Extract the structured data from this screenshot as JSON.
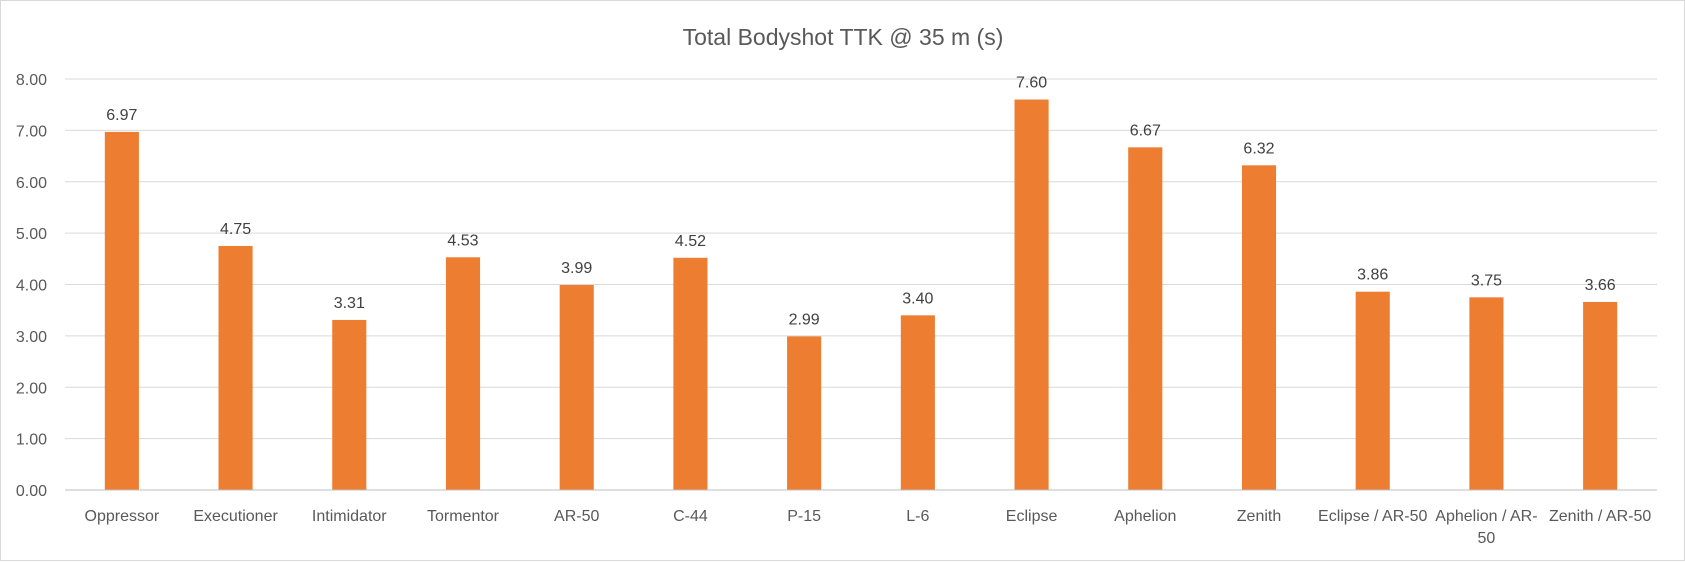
{
  "chart_data": {
    "type": "bar",
    "title": "Total Bodyshot TTK @ 35 m (s)",
    "xlabel": "",
    "ylabel": "",
    "ylim": [
      0,
      8
    ],
    "yticks": [
      "0.00",
      "1.00",
      "2.00",
      "3.00",
      "4.00",
      "5.00",
      "6.00",
      "7.00",
      "8.00"
    ],
    "grid": true,
    "legend": "none",
    "bar_color": "#ED7D31",
    "categories": [
      [
        "Oppressor"
      ],
      [
        "Executioner"
      ],
      [
        "Intimidator"
      ],
      [
        "Tormentor"
      ],
      [
        "AR-50"
      ],
      [
        "C-44"
      ],
      [
        "P-15"
      ],
      [
        "L-6"
      ],
      [
        "Eclipse"
      ],
      [
        "Aphelion"
      ],
      [
        "Zenith"
      ],
      [
        "Eclipse / AR-50"
      ],
      [
        "Aphelion / AR-",
        "50"
      ],
      [
        "Zenith / AR-50"
      ]
    ],
    "values": [
      6.97,
      4.75,
      3.31,
      4.53,
      3.99,
      4.52,
      2.99,
      3.4,
      7.6,
      6.67,
      6.32,
      3.86,
      3.75,
      3.66
    ],
    "data_labels": [
      "6.97",
      "4.75",
      "3.31",
      "4.53",
      "3.99",
      "4.52",
      "2.99",
      "3.40",
      "7.60",
      "6.67",
      "6.32",
      "3.86",
      "3.75",
      "3.66"
    ]
  }
}
